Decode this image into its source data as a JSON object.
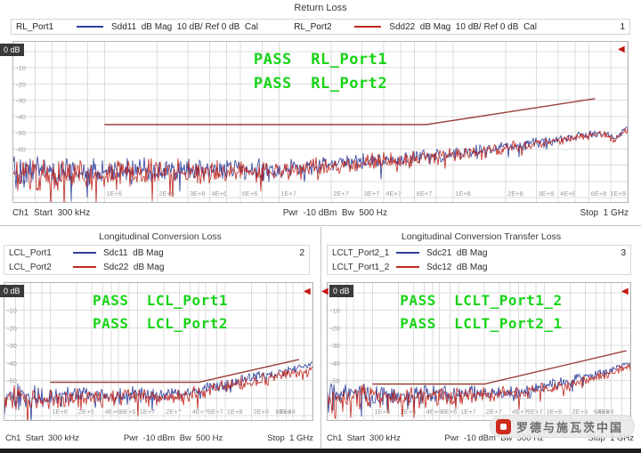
{
  "icons": {
    "ref_marker": "◀"
  },
  "colors": {
    "trace_blue": "#2f3f9b",
    "trace_red": "#c02820",
    "limit_line": "#9a4038",
    "pass_green": "#17d417",
    "ref_marker_red": "#c41410",
    "ref_box_bg": "#3a3a3a"
  },
  "watermark": {
    "text": "罗德与施瓦茨中国"
  },
  "panels": [
    {
      "title": "Return Loss",
      "trace_number": "1",
      "ref_label": "0 dB",
      "legend": [
        {
          "name": "RL_Port1",
          "color": "#2f3f9b",
          "params": "Sdd11  dB Mag  10 dB/ Ref 0 dB  Cal"
        },
        {
          "name": "RL_Port2",
          "color": "#c02820",
          "params": "Sdd22  dB Mag  10 dB/ Ref 0 dB  Cal"
        }
      ],
      "pass_labels": [
        "PASS  RL_Port1",
        "PASS  RL_Port2"
      ],
      "status": {
        "left": "Ch1  Start  300 kHz",
        "center": "Pwr  -10 dBm  Bw  500 Hz",
        "right": "Stop  1 GHz"
      }
    },
    {
      "title": "Longitudinal Conversion Loss",
      "trace_number": "2",
      "ref_label": "0 dB",
      "legend": [
        {
          "name": "LCL_Port1",
          "color": "#2f3f9b",
          "params": "Sdc11  dB Mag"
        },
        {
          "name": "LCL_Port2",
          "color": "#c02820",
          "params": "Sdc22  dB Mag"
        }
      ],
      "pass_labels": [
        "PASS  LCL_Port1",
        "PASS  LCL_Port2"
      ],
      "status": {
        "left": "Ch1  Start  300 kHz",
        "center": "Pwr  -10 dBm  Bw  500 Hz",
        "right": "Stop  1 GHz"
      }
    },
    {
      "title": "Longitudinal Conversion Transfer Loss",
      "trace_number": "3",
      "ref_label": "0 dB",
      "legend": [
        {
          "name": "LCLT_Port2_1",
          "color": "#2f3f9b",
          "params": "Sdc21  dB Mag"
        },
        {
          "name": "LCLT_Port1_2",
          "color": "#c02820",
          "params": "Sdc12  dB Mag"
        }
      ],
      "pass_labels": [
        "PASS  LCLT_Port1_2",
        "PASS  LCLT_Port2_1"
      ],
      "status": {
        "left": "Ch1  Start  300 kHz",
        "center": "Pwr  -10 dBm  Bw  500 Hz",
        "right": "Stop  1 GHz"
      }
    }
  ],
  "chart_data": [
    {
      "type": "line",
      "title": "Return Loss",
      "x_axis": {
        "scale": "log",
        "start_hz": 300000,
        "stop_hz": 1000000000,
        "start_label": "300 kHz",
        "stop_label": "1 GHz"
      },
      "y_axis": {
        "unit": "dB",
        "ref": 0,
        "scale_per_div": 10,
        "min": -90
      },
      "grid_x": [
        [
          400000,
          ""
        ],
        [
          500000,
          ""
        ],
        [
          600000,
          ""
        ],
        [
          800000,
          ""
        ],
        [
          1000000,
          "1E+6"
        ],
        [
          2000000,
          "2E+6"
        ],
        [
          3000000,
          "3E+6"
        ],
        [
          4000000,
          "4E+6"
        ],
        [
          5000000,
          ""
        ],
        [
          6000000,
          "6E+6"
        ],
        [
          8000000,
          ""
        ],
        [
          10000000,
          "1E+7"
        ],
        [
          20000000,
          "2E+7"
        ],
        [
          30000000,
          "3E+7"
        ],
        [
          40000000,
          "4E+7"
        ],
        [
          50000000,
          ""
        ],
        [
          60000000,
          "6E+7"
        ],
        [
          80000000,
          ""
        ],
        [
          100000000,
          "1E+8"
        ],
        [
          200000000,
          "2E+8"
        ],
        [
          300000000,
          "3E+8"
        ],
        [
          400000000,
          "4E+8"
        ],
        [
          500000000,
          ""
        ],
        [
          600000000,
          "6E+8"
        ],
        [
          800000000,
          ""
        ],
        [
          1000000000,
          "1E+9"
        ]
      ],
      "series": [
        {
          "name": "RL_Port1 Sdd11",
          "color": "#2f3f9b",
          "seed": 42,
          "noise_db": 11,
          "noise_end_db": 2,
          "trend": [
            [
              300000,
              -74
            ],
            [
              10000000,
              -72
            ],
            [
              100000000,
              -63
            ],
            [
              400000000,
              -54
            ],
            [
              700000000,
              -50
            ],
            [
              850000000,
              -53
            ],
            [
              1000000000,
              -46
            ]
          ]
        },
        {
          "name": "RL_Port2 Sdd22",
          "color": "#c02820",
          "seed": 137,
          "noise_db": 12,
          "noise_end_db": 2.5,
          "trend": [
            [
              300000,
              -76
            ],
            [
              10000000,
              -73
            ],
            [
              100000000,
              -64
            ],
            [
              400000000,
              -55
            ],
            [
              700000000,
              -51
            ],
            [
              850000000,
              -54
            ],
            [
              1000000000,
              -48
            ]
          ]
        }
      ],
      "limit_lines": [
        {
          "name": "RL limit",
          "color": "#9a4038",
          "points": [
            [
              1000000,
              -45
            ],
            [
              70000000,
              -45
            ],
            [
              650000000,
              -29
            ]
          ]
        }
      ],
      "result": [
        "PASS RL_Port1",
        "PASS RL_Port2"
      ]
    },
    {
      "type": "line",
      "title": "Longitudinal Conversion Loss",
      "x_axis": {
        "scale": "log",
        "start_hz": 300000,
        "stop_hz": 1000000000,
        "start_label": "300 kHz",
        "stop_label": "1 GHz"
      },
      "y_axis": {
        "unit": "dB",
        "ref": 0,
        "scale_per_div": 10,
        "min": -70
      },
      "grid_x": [
        [
          400000,
          ""
        ],
        [
          500000,
          ""
        ],
        [
          600000,
          ""
        ],
        [
          800000,
          ""
        ],
        [
          1000000,
          "1E+6"
        ],
        [
          2000000,
          "2E+6"
        ],
        [
          3000000,
          ""
        ],
        [
          4000000,
          "4E+6"
        ],
        [
          5000000,
          ""
        ],
        [
          6000000,
          "6E+6"
        ],
        [
          8000000,
          ""
        ],
        [
          10000000,
          "1E+7"
        ],
        [
          20000000,
          "2E+7"
        ],
        [
          30000000,
          ""
        ],
        [
          40000000,
          "4E+7"
        ],
        [
          50000000,
          ""
        ],
        [
          60000000,
          "6E+7"
        ],
        [
          80000000,
          ""
        ],
        [
          100000000,
          "1E+8"
        ],
        [
          200000000,
          "2E+8"
        ],
        [
          300000000,
          ""
        ],
        [
          400000000,
          "4E+8"
        ],
        [
          500000000,
          ""
        ],
        [
          600000000,
          "6E+8"
        ],
        [
          800000000,
          ""
        ],
        [
          1000000000,
          ""
        ]
      ],
      "series": [
        {
          "name": "LCL_Port1 Sdc11",
          "color": "#2f3f9b",
          "seed": 7,
          "noise_db": 8,
          "noise_end_db": 2,
          "trend": [
            [
              300000,
              -59
            ],
            [
              30000000,
              -58
            ],
            [
              150000000,
              -50
            ],
            [
              1000000000,
              -41
            ]
          ]
        },
        {
          "name": "LCL_Port2 Sdc22",
          "color": "#c02820",
          "seed": 91,
          "noise_db": 8.5,
          "noise_end_db": 3,
          "trend": [
            [
              300000,
              -61
            ],
            [
              30000000,
              -59
            ],
            [
              150000000,
              -52
            ],
            [
              1000000000,
              -44
            ]
          ]
        }
      ],
      "limit_lines": [
        {
          "name": "LCL limit",
          "color": "#9a4038",
          "points": [
            [
              1000000,
              -51
            ],
            [
              50000000,
              -51
            ],
            [
              700000000,
              -38
            ]
          ]
        }
      ],
      "result": [
        "PASS LCL_Port1",
        "PASS LCL_Port2"
      ]
    },
    {
      "type": "line",
      "title": "Longitudinal Conversion Transfer Loss",
      "x_axis": {
        "scale": "log",
        "start_hz": 300000,
        "stop_hz": 1000000000,
        "start_label": "300 kHz",
        "stop_label": "1 GHz"
      },
      "y_axis": {
        "unit": "dB",
        "ref": 0,
        "scale_per_div": 10,
        "min": -70
      },
      "grid_x": [
        [
          400000,
          ""
        ],
        [
          500000,
          ""
        ],
        [
          600000,
          ""
        ],
        [
          800000,
          ""
        ],
        [
          1000000,
          "1E+6"
        ],
        [
          2000000,
          "2E+6"
        ],
        [
          3000000,
          ""
        ],
        [
          4000000,
          "4E+6"
        ],
        [
          5000000,
          ""
        ],
        [
          6000000,
          "6E+6"
        ],
        [
          8000000,
          ""
        ],
        [
          10000000,
          "1E+7"
        ],
        [
          20000000,
          "2E+7"
        ],
        [
          30000000,
          ""
        ],
        [
          40000000,
          "4E+7"
        ],
        [
          50000000,
          ""
        ],
        [
          60000000,
          "6E+7"
        ],
        [
          80000000,
          ""
        ],
        [
          100000000,
          "1E+8"
        ],
        [
          200000000,
          "2E+8"
        ],
        [
          300000000,
          ""
        ],
        [
          400000000,
          "4E+8"
        ],
        [
          500000000,
          ""
        ],
        [
          600000000,
          "6E+8"
        ],
        [
          800000000,
          ""
        ],
        [
          1000000000,
          ""
        ]
      ],
      "series": [
        {
          "name": "LCLT_Port2_1 Sdc21",
          "color": "#2f3f9b",
          "seed": 19,
          "noise_db": 8,
          "noise_end_db": 2,
          "trend": [
            [
              300000,
              -58
            ],
            [
              50000000,
              -57
            ],
            [
              300000000,
              -48
            ],
            [
              1000000000,
              -40
            ]
          ]
        },
        {
          "name": "LCLT_Port1_2 Sdc12",
          "color": "#c02820",
          "seed": 63,
          "noise_db": 8.5,
          "noise_end_db": 3,
          "trend": [
            [
              300000,
              -60
            ],
            [
              50000000,
              -58
            ],
            [
              300000000,
              -50
            ],
            [
              1000000000,
              -42
            ]
          ]
        }
      ],
      "limit_lines": [
        {
          "name": "LCLT limit",
          "color": "#9a4038",
          "points": [
            [
              1000000,
              -52
            ],
            [
              20000000,
              -52
            ],
            [
              900000000,
              -33
            ]
          ]
        }
      ],
      "result": [
        "PASS LCLT_Port1_2",
        "PASS LCLT_Port2_1"
      ]
    }
  ]
}
